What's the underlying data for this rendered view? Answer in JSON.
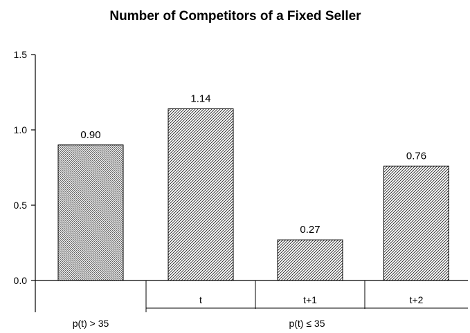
{
  "chart_data": {
    "type": "bar",
    "title": "Number of Competitors of a Fixed Seller",
    "xlabel": "",
    "ylabel": "",
    "ylim": [
      0,
      1.5
    ],
    "yticks": [
      "0.0",
      "0.5",
      "1.0",
      "1.5"
    ],
    "yticks_values": [
      0,
      0.5,
      1.0,
      1.5
    ],
    "categories": [
      "",
      "t",
      "t+1",
      "t+2"
    ],
    "groups": [
      {
        "label": "p(t) > 35",
        "categories": [
          ""
        ]
      },
      {
        "label": "p(t) ≤ 35",
        "categories": [
          "t",
          "t+1",
          "t+2"
        ]
      }
    ],
    "values": [
      0.9,
      1.14,
      0.27,
      0.76
    ],
    "value_labels": [
      "0.90",
      "1.14",
      "0.27",
      "0.76"
    ],
    "bar_patterns": [
      "dense-backslash-hatch",
      "forward-slash-hatch",
      "forward-slash-hatch",
      "forward-slash-hatch"
    ],
    "grid": false,
    "legend": "none",
    "colors": {
      "axis": "#000000",
      "bar_fill": "#ffffff",
      "hatch": "#000000"
    }
  }
}
